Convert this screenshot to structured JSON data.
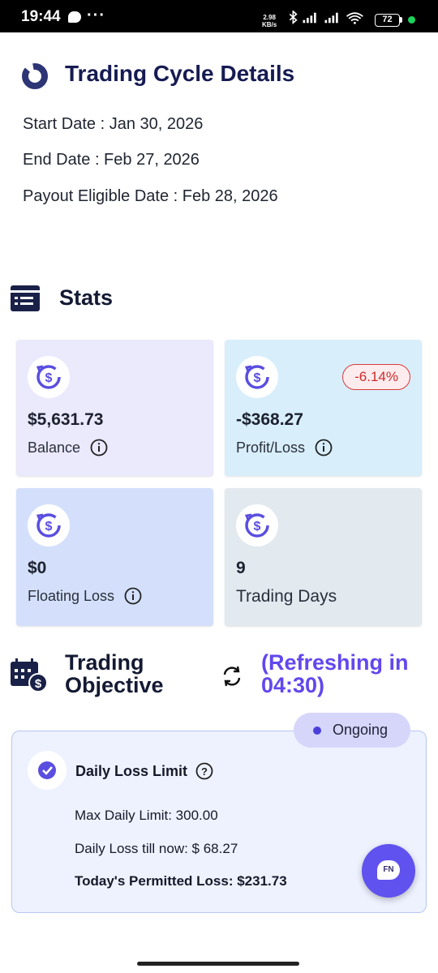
{
  "status_bar": {
    "time": "19:44",
    "dots": "···",
    "net_speed_value": "2.98",
    "net_speed_unit": "KB/s",
    "battery": "72"
  },
  "cycle": {
    "title": "Trading Cycle Details",
    "start_date": "Start Date : Jan 30, 2026",
    "end_date": "End Date : Feb 27, 2026",
    "payout_date": "Payout Eligible Date : Feb 28, 2026"
  },
  "stats": {
    "title": "Stats",
    "cards": [
      {
        "value": "$5,631.73",
        "label": "Balance",
        "bg": "#ebe9fc"
      },
      {
        "value": "-$368.27",
        "label": "Profit/Loss",
        "badge": "-6.14%",
        "bg": "#d8eefb"
      },
      {
        "value": "$0",
        "label": "Floating Loss",
        "bg": "#d4e0fb"
      },
      {
        "value": "9",
        "label": "Trading Days",
        "bg": "#e2e9ef"
      }
    ]
  },
  "objective": {
    "title_line1": "Trading",
    "title_line2": "Objective",
    "refreshing_line1": "(Refreshing in",
    "refreshing_line2": "04:30)",
    "status": "Ongoing",
    "rule_title": "Daily Loss Limit",
    "max_daily_limit": "Max Daily Limit: 300.00",
    "daily_loss_till_now": "Daily Loss till now: $ 68.27",
    "permitted_loss": "Today's Permitted Loss: $231.73"
  },
  "chat_fab": {
    "label": "FN"
  },
  "colors": {
    "accent": "#6052ee",
    "title": "#161b52",
    "loss_red": "#d02a2a"
  }
}
